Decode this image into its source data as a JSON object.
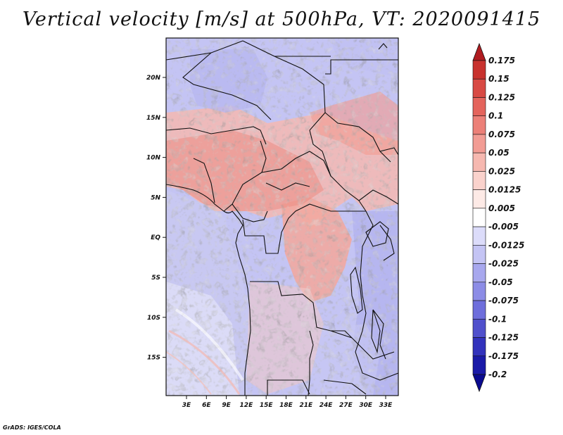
{
  "title": "Vertical velocity [m/s] at 500hPa, VT: 2020091415",
  "credit": "GrADS: IGES/COLA",
  "map": {
    "lon_ticks": [
      "3E",
      "6E",
      "9E",
      "12E",
      "15E",
      "18E",
      "21E",
      "24E",
      "27E",
      "30E",
      "33E"
    ],
    "lat_ticks": [
      "20N",
      "15N",
      "10N",
      "5N",
      "EQ",
      "5S",
      "10S",
      "15S"
    ]
  },
  "chart_data": {
    "type": "heatmap",
    "title": "Vertical velocity [m/s] at 500hPa, VT: 2020091415",
    "variable": "Vertical velocity",
    "units": "m/s",
    "level": "500hPa",
    "valid_time": "2020091415",
    "x_ticks": [
      "3E",
      "6E",
      "9E",
      "12E",
      "15E",
      "18E",
      "21E",
      "24E",
      "27E",
      "30E",
      "33E"
    ],
    "y_ticks": [
      "20N",
      "15N",
      "10N",
      "5N",
      "EQ",
      "5S",
      "10S",
      "15S"
    ],
    "colorbar": {
      "levels": [
        "0.175",
        "0.15",
        "0.125",
        "0.1",
        "0.075",
        "0.05",
        "0.025",
        "0.0125",
        "0.005",
        "-0.005",
        "-0.0125",
        "-0.025",
        "-0.05",
        "-0.075",
        "-0.1",
        "-0.125",
        "-0.175",
        "-0.2"
      ],
      "colors": [
        "#b01c20",
        "#c8322e",
        "#d84a44",
        "#e4645c",
        "#ec8078",
        "#f29c94",
        "#f6b8b0",
        "#fad2cc",
        "#fdeae6",
        "#ffffff",
        "#dcdcfa",
        "#c4c4f4",
        "#a8a8ee",
        "#8c8ce6",
        "#6e6edc",
        "#5050cc",
        "#3232bc",
        "#1a1aa8",
        "#0a0a90"
      ]
    }
  }
}
